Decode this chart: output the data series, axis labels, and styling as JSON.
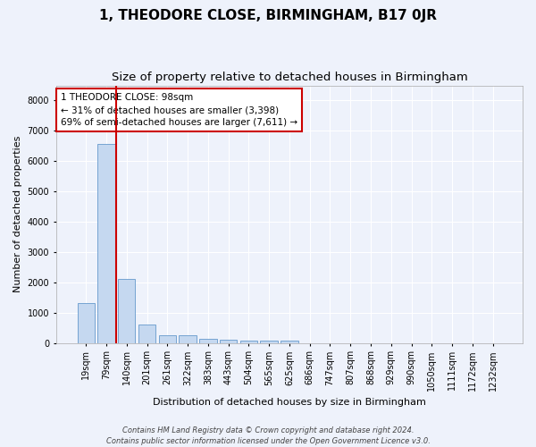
{
  "title": "1, THEODORE CLOSE, BIRMINGHAM, B17 0JR",
  "subtitle": "Size of property relative to detached houses in Birmingham",
  "xlabel": "Distribution of detached houses by size in Birmingham",
  "ylabel": "Number of detached properties",
  "categories": [
    "19sqm",
    "79sqm",
    "140sqm",
    "201sqm",
    "261sqm",
    "322sqm",
    "383sqm",
    "443sqm",
    "504sqm",
    "565sqm",
    "625sqm",
    "686sqm",
    "747sqm",
    "807sqm",
    "868sqm",
    "929sqm",
    "990sqm",
    "1050sqm",
    "1111sqm",
    "1172sqm",
    "1232sqm"
  ],
  "values": [
    1300,
    6560,
    2100,
    620,
    260,
    250,
    130,
    110,
    80,
    80,
    80,
    0,
    0,
    0,
    0,
    0,
    0,
    0,
    0,
    0,
    0
  ],
  "bar_color": "#c5d8f0",
  "bar_edge_color": "#6699cc",
  "red_line_color": "#cc0000",
  "red_line_x": 1.48,
  "annotation_text": "1 THEODORE CLOSE: 98sqm\n← 31% of detached houses are smaller (3,398)\n69% of semi-detached houses are larger (7,611) →",
  "annotation_box_facecolor": "#ffffff",
  "annotation_box_edgecolor": "#cc0000",
  "ylim": [
    0,
    8500
  ],
  "yticks": [
    0,
    1000,
    2000,
    3000,
    4000,
    5000,
    6000,
    7000,
    8000
  ],
  "footer_line1": "Contains HM Land Registry data © Crown copyright and database right 2024.",
  "footer_line2": "Contains public sector information licensed under the Open Government Licence v3.0.",
  "bg_color": "#eef2fb",
  "plot_bg_color": "#eef2fb",
  "grid_color": "#ffffff",
  "title_fontsize": 11,
  "subtitle_fontsize": 9.5,
  "axis_label_fontsize": 8,
  "tick_fontsize": 7,
  "annotation_fontsize": 7.5,
  "footer_fontsize": 6
}
